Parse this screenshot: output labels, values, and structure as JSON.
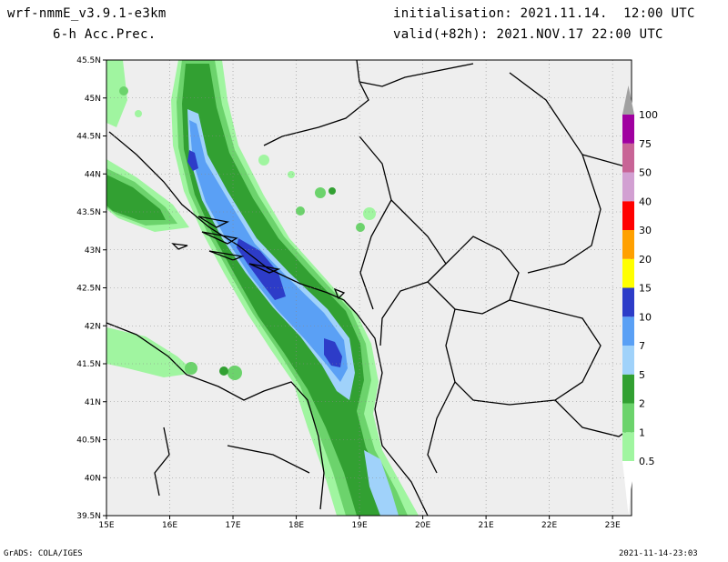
{
  "header": {
    "model": "wrf-nmmE_v3.9.1-e3km",
    "field": "6-h Acc.Prec.",
    "init": "initialisation: 2021.11.14.  12:00 UTC",
    "valid": "valid(+82h): 2021.NOV.17 22:00 UTC"
  },
  "footer": {
    "left": "GrADS: COLA/IGES",
    "right": "2021-11-14-23:03"
  },
  "map": {
    "lon_range": [
      15,
      23.3
    ],
    "lat_range": [
      39.5,
      45.5
    ],
    "background_color": "#eeeeee",
    "lat_labels": [
      "39.5N",
      "40N",
      "40.5N",
      "41N",
      "41.5N",
      "42N",
      "42.5N",
      "43N",
      "43.5N",
      "44N",
      "44.5N",
      "45N",
      "45.5N"
    ],
    "lon_labels": [
      "15E",
      "16E",
      "17E",
      "18E",
      "19E",
      "20E",
      "21E",
      "22E",
      "23E"
    ]
  },
  "colorbar": {
    "levels": [
      "0.5",
      "1",
      "2",
      "5",
      "7",
      "10",
      "15",
      "20",
      "30",
      "40",
      "50",
      "75",
      "100"
    ],
    "colors": [
      "#a0f5a0",
      "#6cd36c",
      "#32a032",
      "#a0d2fa",
      "#5aa0f5",
      "#2d3cc8",
      "#ffff00",
      "#ffa000",
      "#ff0000",
      "#d2a0d2",
      "#c86496",
      "#a000a0"
    ]
  }
}
